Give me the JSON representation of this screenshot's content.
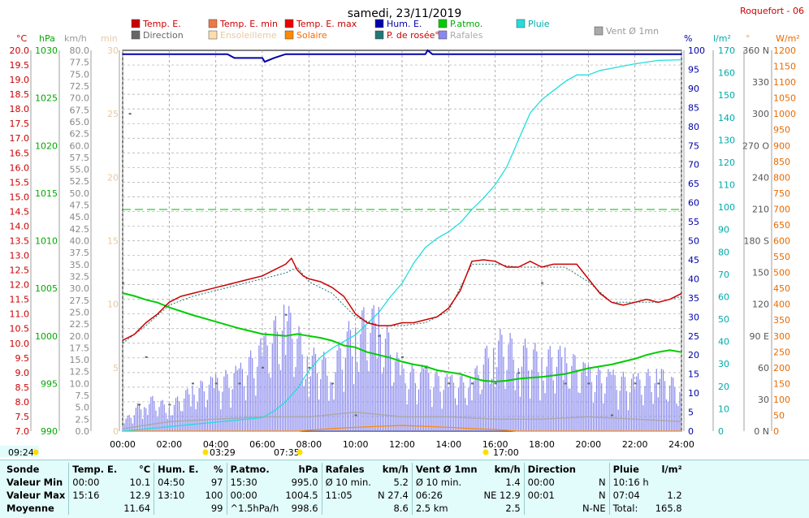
{
  "title": "samedi, 23/11/2019",
  "station": "Roquefort - 06",
  "legend": [
    {
      "label": "Temp. E.",
      "color": "#cc0000",
      "text_color": "#cc0000"
    },
    {
      "label": "Temp. E. min",
      "color": "#ee7744",
      "text_color": "#cc0000"
    },
    {
      "label": "Temp. E. max",
      "color": "#ee0000",
      "text_color": "#cc0000"
    },
    {
      "label": "Hum. E.",
      "color": "#0000aa",
      "text_color": "#0000aa"
    },
    {
      "label": "P.atmo.",
      "color": "#00cc00",
      "text_color": "#00aa00"
    },
    {
      "label": "Pluie",
      "color": "#22dddd",
      "text_color": "#00aaaa"
    },
    {
      "label": "Vent Ø 1mn",
      "color": "#aaaaaa",
      "text_color": "#999999"
    },
    {
      "label": "Direction",
      "color": "#666666",
      "text_color": "#666666"
    },
    {
      "label": "Ensoleilleme",
      "color": "#ffddaa",
      "text_color": "#e8c9a0"
    },
    {
      "label": "Solaire",
      "color": "#ff8800",
      "text_color": "#ff6600"
    },
    {
      "label": "P. de rosée°",
      "color": "#227777",
      "text_color": "#cc0000"
    },
    {
      "label": "Rafales",
      "color": "#8888ee",
      "text_color": "#aaaaaa"
    }
  ],
  "axis_units": {
    "temp": "°C",
    "press": "hPa",
    "wind": "km/h",
    "minutes": "min",
    "hum": "%",
    "rain": "l/m²",
    "dir": "°",
    "solar": "W/m²"
  },
  "sun": {
    "sunrise_box": "09:24",
    "dawn": "03:29",
    "sunrise": "07:35",
    "sunset": "17:00"
  },
  "stats": {
    "rows": [
      [
        "Sonde",
        "Temp. E.",
        "°C",
        "Hum. E.",
        "%",
        "P.atmo.",
        "hPa",
        "Rafales",
        "km/h",
        "Vent Ø 1mn",
        "km/h",
        "Direction",
        "",
        "Pluie",
        "l/m²"
      ],
      [
        "Valeur Min",
        "00:00",
        "10.1",
        "04:50",
        "97",
        "15:30",
        "995.0",
        "Ø 10 min.",
        "5.2",
        "Ø 10 min.",
        "1.4",
        "00:00",
        "N",
        "10:16 h",
        ""
      ],
      [
        "Valeur Max",
        "15:16",
        "12.9",
        "13:10",
        "100",
        "00:00",
        "1004.5",
        "11:05",
        "N 27.4",
        "06:26",
        "NE 12.9",
        "00:01",
        "N",
        "07:04",
        "1.2"
      ],
      [
        "Moyenne",
        "",
        "11.64",
        "",
        "99",
        "^1.5hPa/h",
        "998.6",
        "",
        "8.6",
        "2.5 km",
        "2.5",
        "",
        "N-NE",
        "Total:",
        "165.8"
      ]
    ]
  },
  "chart_data": {
    "type": "line",
    "title": "samedi, 23/11/2019",
    "x_axis": {
      "label": "",
      "ticks": [
        "00:00",
        "02:00",
        "04:00",
        "06:00",
        "08:00",
        "10:00",
        "12:00",
        "14:00",
        "16:00",
        "18:00",
        "20:00",
        "22:00",
        "24:00"
      ],
      "range_hours": [
        0,
        24
      ]
    },
    "axes": {
      "temp_c": {
        "unit": "°C",
        "range": [
          7.0,
          20.0
        ],
        "ticks": [
          "7.0",
          "7.5",
          "8.0",
          "8.5",
          "9.0",
          "9.5",
          "10.0",
          "10.5",
          "11.0",
          "11.5",
          "12.0",
          "12.5",
          "13.0",
          "13.5",
          "14.0",
          "14.5",
          "15.0",
          "15.5",
          "16.0",
          "16.5",
          "17.0",
          "17.5",
          "18.0",
          "18.5",
          "19.0",
          "19.5",
          "20.0"
        ]
      },
      "press_hpa": {
        "unit": "hPa",
        "range": [
          990,
          1030
        ],
        "ticks": [
          "990",
          "995",
          "1000",
          "1005",
          "1010",
          "1015",
          "1020",
          "1025",
          "1030"
        ]
      },
      "wind_kmh": {
        "unit": "km/h",
        "range": [
          0,
          80
        ],
        "ticks": [
          "0.0",
          "2.5",
          "5.0",
          "7.5",
          "10.0",
          "12.5",
          "15.0",
          "17.5",
          "20.0",
          "22.5",
          "25.0",
          "27.5",
          "30.0",
          "32.5",
          "35.0",
          "37.5",
          "40.0",
          "42.5",
          "45.0",
          "47.5",
          "50.0",
          "52.5",
          "55.0",
          "57.5",
          "60.0",
          "62.5",
          "65.0",
          "67.5",
          "70.0",
          "72.5",
          "75.0",
          "77.5",
          "80.0"
        ]
      },
      "sun_min": {
        "unit": "min",
        "range": [
          0,
          30
        ],
        "ticks": [
          "0",
          "5",
          "10",
          "15",
          "20",
          "25",
          "30"
        ]
      },
      "hum_pct": {
        "unit": "%",
        "range": [
          0,
          100
        ],
        "ticks": [
          "0",
          "5",
          "10",
          "15",
          "20",
          "25",
          "30",
          "35",
          "40",
          "45",
          "50",
          "55",
          "60",
          "65",
          "70",
          "75",
          "80",
          "85",
          "90",
          "95",
          "100"
        ]
      },
      "rain_lm2": {
        "unit": "l/m²",
        "range": [
          0,
          170
        ],
        "ticks": [
          "0",
          "10",
          "20",
          "30",
          "40",
          "50",
          "60",
          "70",
          "80",
          "90",
          "100",
          "110",
          "120",
          "130",
          "140",
          "150",
          "160",
          "170"
        ]
      },
      "dir_deg": {
        "unit": "°",
        "range": [
          0,
          360
        ],
        "ticks": [
          "0 N",
          "30",
          "60",
          "90 E",
          "120",
          "150",
          "180 S",
          "210",
          "240",
          "270 O",
          "300",
          "330",
          "360 N"
        ]
      },
      "solar_wm2": {
        "unit": "W/m²",
        "range": [
          0,
          1200
        ],
        "ticks": [
          "0",
          "50",
          "100",
          "150",
          "200",
          "250",
          "300",
          "350",
          "400",
          "450",
          "500",
          "550",
          "600",
          "650",
          "700",
          "750",
          "800",
          "850",
          "900",
          "950",
          "1000",
          "1050",
          "1100",
          "1150",
          "1200"
        ]
      }
    },
    "series": [
      {
        "name": "Temp. E.",
        "unit": "°C",
        "x": [
          0,
          0.5,
          1,
          1.5,
          2,
          2.5,
          3,
          3.5,
          4,
          4.5,
          5,
          5.5,
          6,
          6.5,
          7,
          7.25,
          7.5,
          7.75,
          8,
          8.5,
          9,
          9.5,
          10,
          10.5,
          11,
          11.5,
          12,
          12.5,
          13,
          13.5,
          14,
          14.5,
          15,
          15.5,
          16,
          16.5,
          17,
          17.5,
          18,
          18.5,
          19,
          19.5,
          20,
          20.5,
          21,
          21.5,
          22,
          22.5,
          23,
          23.5,
          24
        ],
        "values": [
          10.1,
          10.3,
          10.7,
          11.0,
          11.4,
          11.6,
          11.7,
          11.8,
          11.9,
          12.0,
          12.1,
          12.2,
          12.3,
          12.5,
          12.7,
          12.9,
          12.5,
          12.3,
          12.2,
          12.1,
          11.9,
          11.6,
          11.0,
          10.7,
          10.6,
          10.6,
          10.7,
          10.7,
          10.8,
          10.9,
          11.2,
          11.8,
          12.8,
          12.85,
          12.8,
          12.6,
          12.6,
          12.8,
          12.6,
          12.7,
          12.7,
          12.7,
          12.2,
          11.7,
          11.4,
          11.3,
          11.4,
          11.5,
          11.4,
          11.5,
          11.7
        ]
      },
      {
        "name": "P. de rosée°",
        "unit": "°C",
        "x": [
          0,
          1,
          2,
          3,
          4,
          5,
          6,
          7,
          7.5,
          8,
          9,
          10,
          11,
          12,
          13,
          14,
          15,
          16,
          17,
          18,
          19,
          20,
          21,
          22,
          23,
          24
        ],
        "values": [
          10.0,
          10.6,
          11.3,
          11.6,
          11.8,
          12.0,
          12.2,
          12.4,
          12.6,
          12.1,
          11.7,
          10.9,
          10.6,
          10.6,
          10.7,
          11.1,
          12.7,
          12.7,
          12.6,
          12.6,
          12.6,
          12.1,
          11.4,
          11.4,
          11.4,
          11.6
        ]
      },
      {
        "name": "Hum. E.",
        "unit": "%",
        "x": [
          0,
          4.5,
          4.8,
          5,
          5.5,
          6,
          6.1,
          6.5,
          7,
          7.5,
          8,
          9,
          10,
          12,
          13,
          13.1,
          13.3,
          24
        ],
        "values": [
          99,
          99,
          98,
          98,
          98,
          98,
          97,
          98,
          99,
          99,
          99,
          99,
          99,
          99,
          99,
          100,
          99,
          99
        ]
      },
      {
        "name": "P.atmo.",
        "unit": "hPa",
        "x": [
          0,
          0.5,
          1,
          1.5,
          2,
          3,
          4,
          5,
          6,
          7,
          7.5,
          8,
          8.5,
          9,
          9.5,
          10,
          10.5,
          11,
          11.5,
          12,
          12.5,
          13,
          13.5,
          14,
          14.5,
          15,
          15.5,
          16,
          16.5,
          17,
          17.5,
          18,
          19,
          20,
          21,
          22,
          22.5,
          23,
          23.5,
          24
        ],
        "values": [
          1004.5,
          1004.2,
          1003.8,
          1003.5,
          1003.0,
          1002.2,
          1001.5,
          1000.8,
          1000.2,
          1000.0,
          1000.2,
          1000.0,
          999.8,
          999.5,
          999.0,
          998.8,
          998.3,
          998.0,
          997.7,
          997.3,
          997.0,
          996.8,
          996.4,
          996.2,
          996.0,
          995.6,
          995.3,
          995.2,
          995.3,
          995.5,
          995.6,
          995.7,
          996.0,
          996.6,
          997.0,
          997.6,
          998.0,
          998.3,
          998.5,
          998.3
        ]
      },
      {
        "name": "Pluie",
        "unit": "l/m²",
        "x": [
          0,
          3,
          4,
          5,
          6,
          6.5,
          7,
          7.5,
          8,
          8.5,
          9,
          9.5,
          10,
          10.5,
          11,
          11.5,
          12,
          12.5,
          13,
          13.5,
          14,
          14.5,
          15,
          15.5,
          16,
          16.5,
          17,
          17.5,
          18,
          18.5,
          19,
          19.5,
          20,
          20.5,
          21,
          22,
          23,
          24
        ],
        "values": [
          0,
          3,
          4,
          5,
          6,
          9,
          13,
          19,
          27,
          33,
          37,
          40,
          43,
          48,
          53,
          60,
          66,
          75,
          82,
          86,
          89,
          93,
          99,
          104,
          110,
          118,
          130,
          142,
          148,
          152,
          156,
          159,
          159,
          161,
          162,
          164,
          165.5,
          165.8
        ]
      },
      {
        "name": "Direction",
        "unit": "°",
        "x": [
          0,
          0.3,
          0.7,
          1,
          2,
          3,
          4,
          5,
          6,
          7,
          8,
          9,
          10,
          11,
          12,
          13,
          14,
          15,
          16,
          17,
          18,
          19,
          20,
          21,
          22,
          23
        ],
        "values": [
          140,
          300,
          25,
          70,
          25,
          45,
          45,
          45,
          60,
          110,
          60,
          45,
          15,
          90,
          70,
          60,
          45,
          45,
          45,
          55,
          140,
          45,
          45,
          15,
          45,
          45
        ]
      },
      {
        "name": "Rafales",
        "unit": "km/h",
        "x": [
          0,
          1,
          2,
          3,
          4,
          5,
          6,
          7,
          8,
          9,
          10,
          11,
          12,
          13,
          14,
          15,
          16,
          17,
          18,
          19,
          20,
          21,
          22,
          23,
          24
        ],
        "values": [
          2,
          8,
          6,
          10,
          12,
          14,
          20,
          28,
          18,
          16,
          26,
          27,
          14,
          14,
          12,
          12,
          22,
          20,
          18,
          18,
          14,
          13,
          12,
          14,
          10
        ]
      },
      {
        "name": "Vent Ø 1mn",
        "unit": "km/h",
        "x": [
          0,
          2,
          4,
          6,
          8,
          10,
          12,
          14,
          16,
          18,
          20,
          22,
          24
        ],
        "values": [
          0.5,
          2,
          2.5,
          3,
          3,
          4,
          3,
          3,
          2.5,
          2.5,
          3,
          2.5,
          2
        ]
      },
      {
        "name": "Solaire",
        "unit": "W/m²",
        "x": [
          0,
          7.5,
          8,
          9,
          10,
          11,
          12,
          13,
          14,
          15,
          16,
          17,
          24
        ],
        "values": [
          0,
          0,
          3,
          8,
          12,
          15,
          18,
          15,
          12,
          8,
          5,
          0,
          0
        ]
      }
    ]
  }
}
